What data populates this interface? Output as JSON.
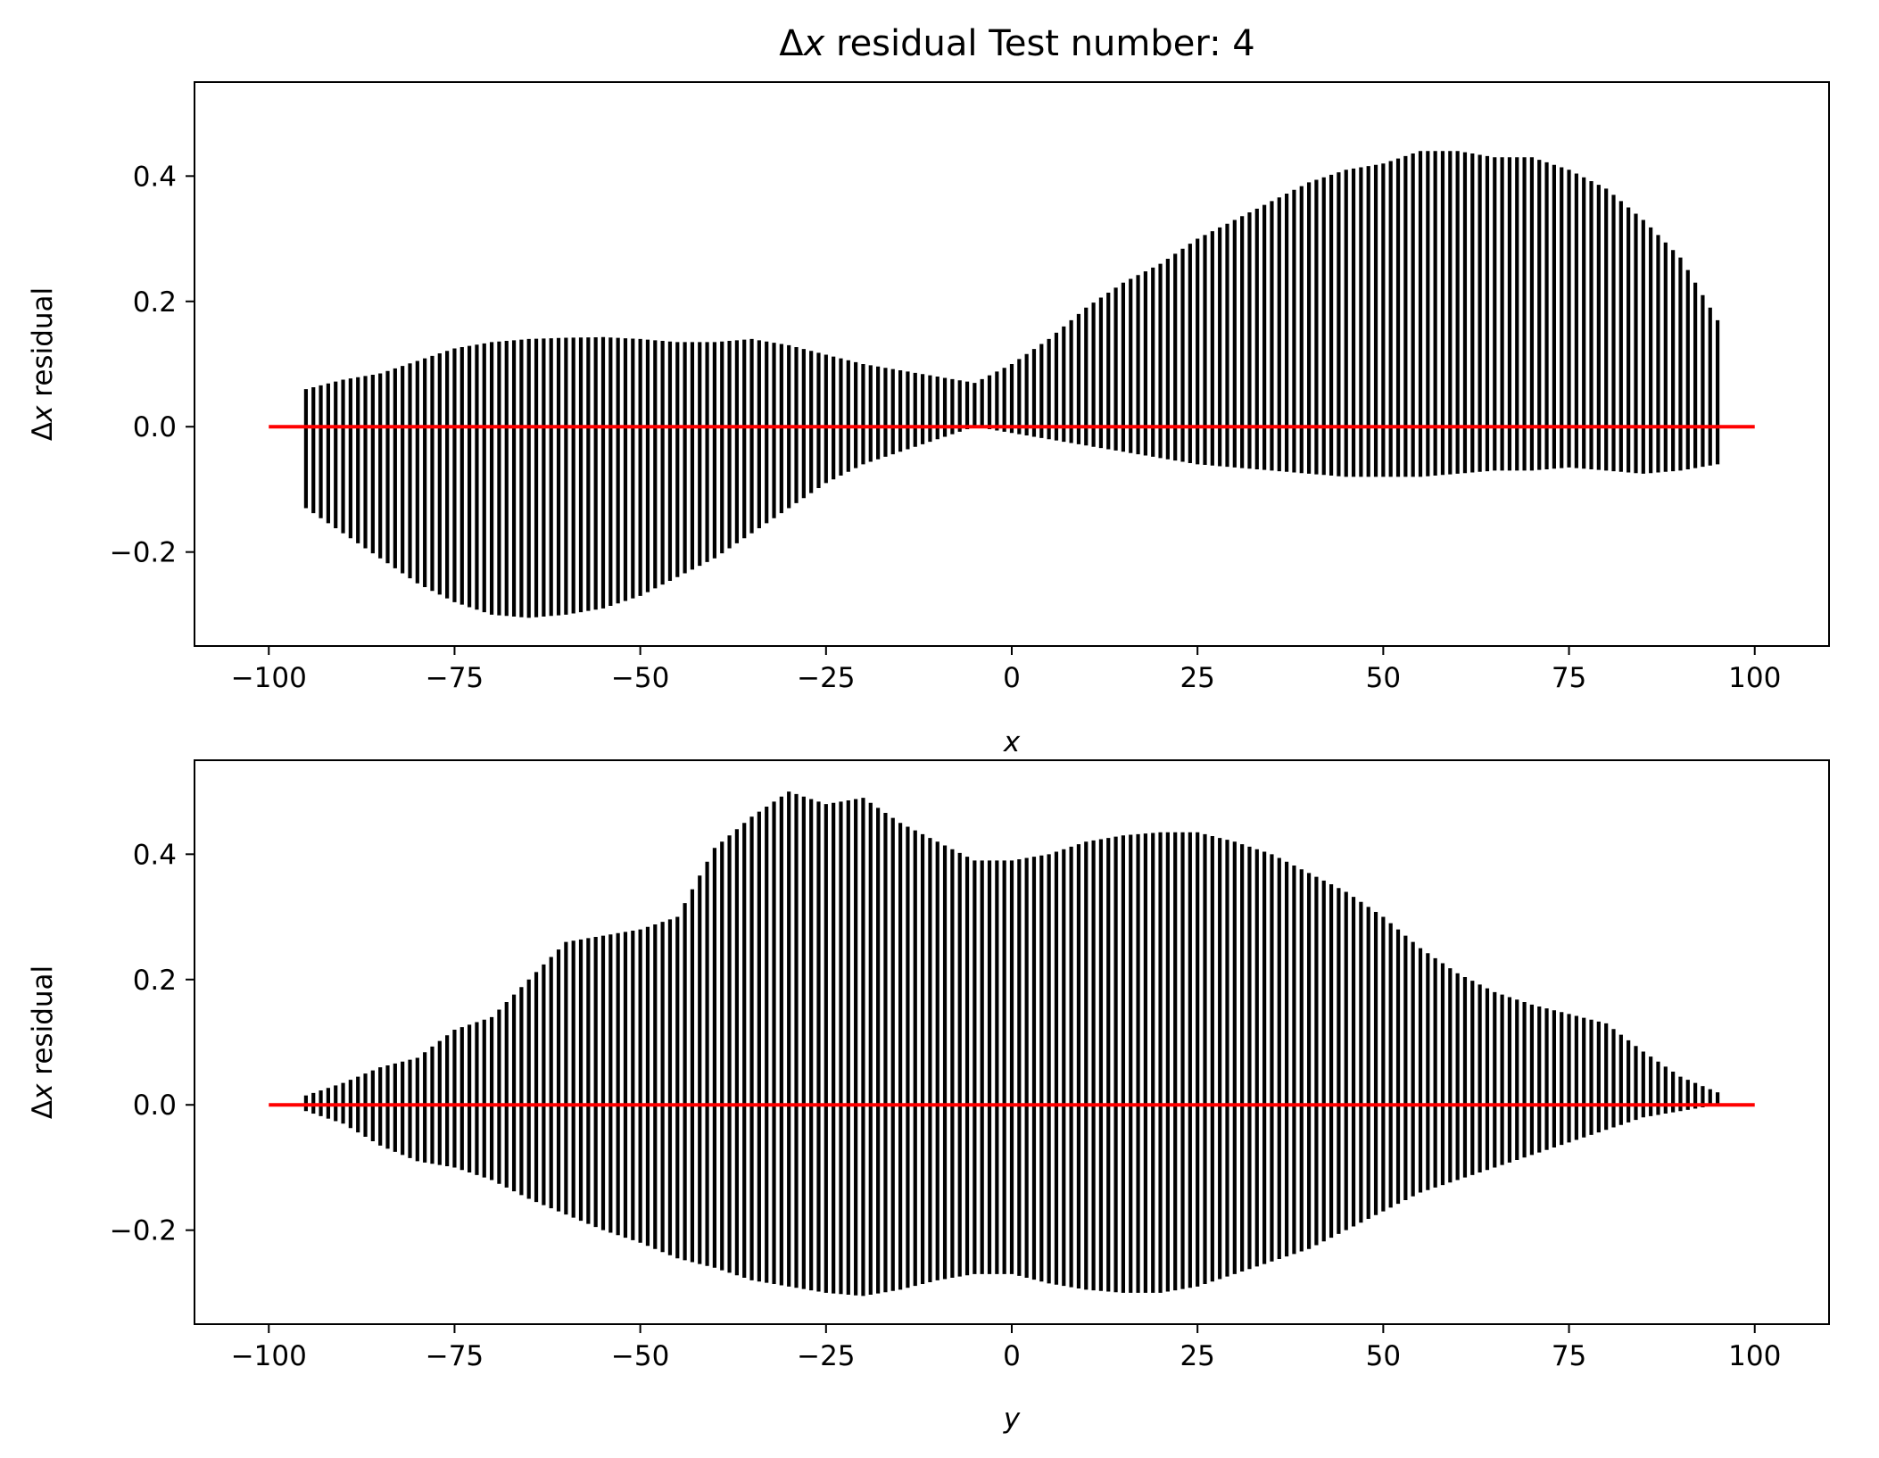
{
  "title": "Δx residual Test number: 4",
  "colors": {
    "points": "#000000",
    "reference_line": "#ff0000",
    "frame": "#000000",
    "background": "#ffffff"
  },
  "chart_data": [
    {
      "type": "scatter",
      "title": "Δx residual Test number: 4",
      "xlabel": "x",
      "ylabel": "Δx residual",
      "xlim": [
        -110,
        110
      ],
      "ylim": [
        -0.35,
        0.55
      ],
      "xticks": [
        -100,
        -75,
        -50,
        -25,
        0,
        25,
        50,
        75,
        100
      ],
      "xtick_labels": [
        "−100",
        "−75",
        "−50",
        "−25",
        "0",
        "25",
        "50",
        "75",
        "100"
      ],
      "yticks": [
        -0.2,
        0.0,
        0.2,
        0.4
      ],
      "ytick_labels": [
        "−0.2",
        "0.0",
        "0.2",
        "0.4"
      ],
      "grid": false,
      "reference_line": {
        "x": [
          -100,
          100
        ],
        "y": [
          0.0,
          0.0
        ],
        "color": "#ff0000"
      },
      "envelope": {
        "x": [
          -95,
          -90,
          -85,
          -80,
          -75,
          -70,
          -65,
          -60,
          -55,
          -50,
          -45,
          -40,
          -35,
          -30,
          -25,
          -20,
          -15,
          -10,
          -5,
          0,
          5,
          10,
          15,
          20,
          25,
          30,
          35,
          40,
          45,
          50,
          55,
          60,
          65,
          70,
          75,
          80,
          85,
          90,
          95
        ],
        "y_max": [
          0.06,
          0.075,
          0.085,
          0.105,
          0.125,
          0.135,
          0.14,
          0.142,
          0.143,
          0.14,
          0.135,
          0.135,
          0.14,
          0.13,
          0.115,
          0.1,
          0.09,
          0.08,
          0.07,
          0.1,
          0.14,
          0.19,
          0.23,
          0.26,
          0.3,
          0.33,
          0.36,
          0.39,
          0.41,
          0.42,
          0.44,
          0.44,
          0.43,
          0.43,
          0.41,
          0.38,
          0.33,
          0.27,
          0.17
        ],
        "y_min": [
          -0.13,
          -0.17,
          -0.21,
          -0.25,
          -0.28,
          -0.3,
          -0.305,
          -0.3,
          -0.29,
          -0.27,
          -0.24,
          -0.21,
          -0.17,
          -0.13,
          -0.09,
          -0.06,
          -0.04,
          -0.02,
          0.0,
          -0.01,
          -0.02,
          -0.03,
          -0.04,
          -0.05,
          -0.06,
          -0.065,
          -0.07,
          -0.075,
          -0.08,
          -0.08,
          -0.08,
          -0.075,
          -0.07,
          -0.07,
          -0.065,
          -0.07,
          -0.075,
          -0.07,
          -0.06
        ]
      }
    },
    {
      "type": "scatter",
      "xlabel": "y",
      "ylabel": "Δx residual",
      "xlim": [
        -110,
        110
      ],
      "ylim": [
        -0.35,
        0.55
      ],
      "xticks": [
        -100,
        -75,
        -50,
        -25,
        0,
        25,
        50,
        75,
        100
      ],
      "xtick_labels": [
        "−100",
        "−75",
        "−50",
        "−25",
        "0",
        "25",
        "50",
        "75",
        "100"
      ],
      "yticks": [
        -0.2,
        0.0,
        0.2,
        0.4
      ],
      "ytick_labels": [
        "−0.2",
        "0.0",
        "0.2",
        "0.4"
      ],
      "grid": false,
      "reference_line": {
        "x": [
          -100,
          100
        ],
        "y": [
          0.0,
          0.0
        ],
        "color": "#ff0000"
      },
      "envelope": {
        "x": [
          -95,
          -90,
          -85,
          -80,
          -75,
          -70,
          -65,
          -60,
          -55,
          -50,
          -45,
          -40,
          -35,
          -30,
          -25,
          -20,
          -15,
          -10,
          -5,
          0,
          5,
          10,
          15,
          20,
          25,
          30,
          35,
          40,
          45,
          50,
          55,
          60,
          65,
          70,
          75,
          80,
          85,
          90,
          95
        ],
        "y_max": [
          0.015,
          0.035,
          0.06,
          0.075,
          0.12,
          0.14,
          0.2,
          0.26,
          0.27,
          0.28,
          0.3,
          0.41,
          0.46,
          0.5,
          0.48,
          0.49,
          0.45,
          0.42,
          0.39,
          0.39,
          0.4,
          0.42,
          0.43,
          0.435,
          0.435,
          0.42,
          0.4,
          0.37,
          0.34,
          0.3,
          0.25,
          0.21,
          0.18,
          0.16,
          0.145,
          0.13,
          0.085,
          0.045,
          0.02
        ],
        "y_min": [
          -0.01,
          -0.03,
          -0.065,
          -0.09,
          -0.1,
          -0.12,
          -0.15,
          -0.175,
          -0.2,
          -0.22,
          -0.245,
          -0.26,
          -0.28,
          -0.29,
          -0.3,
          -0.305,
          -0.295,
          -0.28,
          -0.27,
          -0.27,
          -0.285,
          -0.295,
          -0.3,
          -0.3,
          -0.29,
          -0.27,
          -0.25,
          -0.23,
          -0.2,
          -0.17,
          -0.14,
          -0.12,
          -0.1,
          -0.08,
          -0.06,
          -0.04,
          -0.02,
          -0.01,
          0.0
        ]
      }
    }
  ]
}
